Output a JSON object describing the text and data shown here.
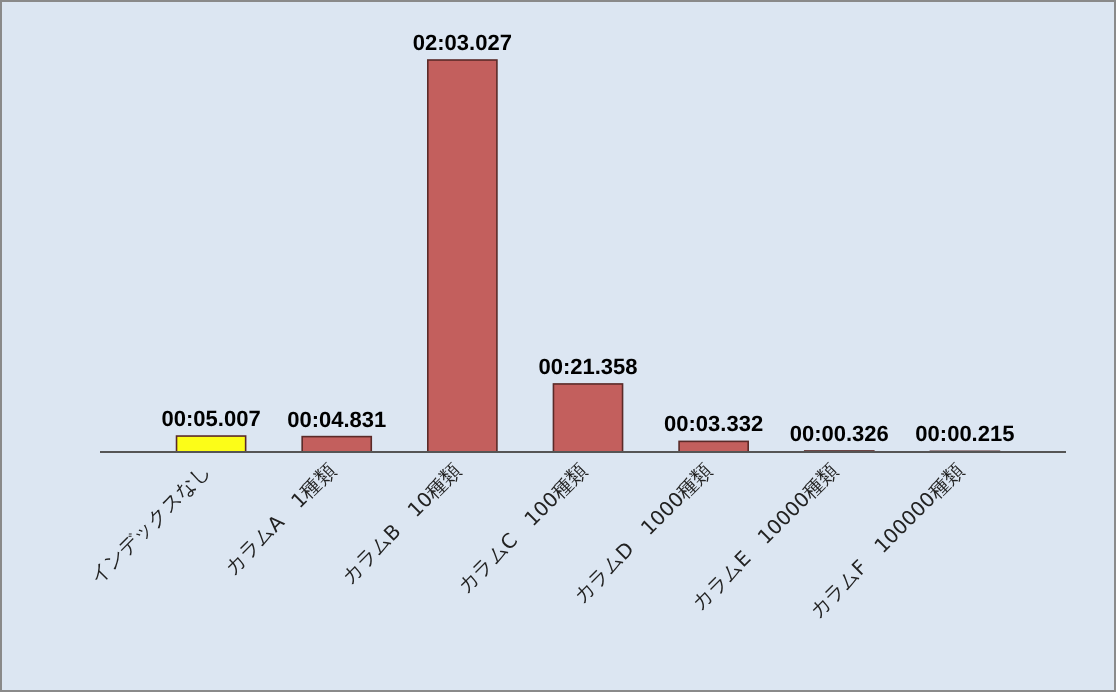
{
  "chart_data": {
    "type": "bar",
    "categories": [
      "インデックスなし",
      "カラムA　1種類",
      "カラムB　10種類",
      "カラムC　100種類",
      "カラムD　1000種類",
      "カラムE　10000種類",
      "カラムF　100000種類"
    ],
    "values": [
      5.007,
      4.831,
      123.027,
      21.358,
      3.332,
      0.326,
      0.215
    ],
    "value_labels": [
      "00:05.007",
      "00:04.831",
      "02:03.027",
      "00:21.358",
      "00:03.332",
      "00:00.326",
      "00:00.215"
    ],
    "colors": [
      "#ffff00",
      "#c0504d",
      "#c0504d",
      "#c0504d",
      "#c0504d",
      "#c0504d",
      "#c0504d"
    ]
  }
}
